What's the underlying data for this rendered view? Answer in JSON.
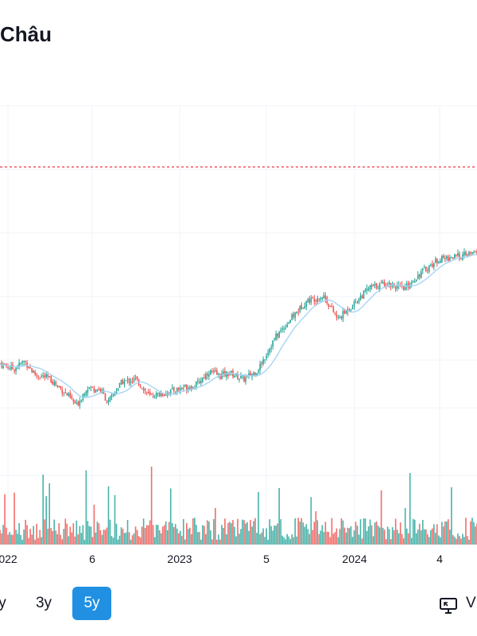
{
  "header": {
    "title": "Châu"
  },
  "chart_data": {
    "type": "candlestick",
    "reference_line": {
      "style": "dashed",
      "color": "#f23645"
    },
    "moving_average": {
      "color": "#a8d4f5"
    },
    "colors": {
      "up": "#26a69a",
      "down": "#ef5350",
      "grid": "#f0f3fa"
    },
    "x_ticks": [
      "022",
      "6",
      "2023",
      "5",
      "2024",
      "4"
    ],
    "price_path": [
      [
        0.0,
        0.78
      ],
      [
        0.04,
        0.74
      ],
      [
        0.07,
        0.8
      ],
      [
        0.1,
        0.7
      ],
      [
        0.14,
        0.67
      ],
      [
        0.19,
        0.55
      ],
      [
        0.22,
        0.46
      ],
      [
        0.25,
        0.6
      ],
      [
        0.29,
        0.58
      ],
      [
        0.31,
        0.48
      ],
      [
        0.35,
        0.64
      ],
      [
        0.39,
        0.66
      ],
      [
        0.43,
        0.53
      ],
      [
        0.48,
        0.56
      ],
      [
        0.53,
        0.6
      ],
      [
        0.56,
        0.61
      ],
      [
        0.6,
        0.72
      ],
      [
        0.63,
        0.69
      ],
      [
        0.66,
        0.71
      ],
      [
        0.7,
        0.66
      ],
      [
        0.74,
        0.73
      ],
      [
        0.79,
        0.98
      ],
      [
        0.84,
        1.14
      ],
      [
        0.88,
        1.26
      ],
      [
        0.93,
        1.3
      ],
      [
        0.97,
        1.12
      ],
      [
        1.02,
        1.25
      ],
      [
        1.06,
        1.36
      ],
      [
        1.11,
        1.4
      ],
      [
        1.16,
        1.35
      ],
      [
        1.21,
        1.48
      ],
      [
        1.26,
        1.58
      ],
      [
        1.31,
        1.6
      ],
      [
        1.37,
        1.63
      ]
    ]
  },
  "range_buttons": [
    {
      "label": "y",
      "active": false
    },
    {
      "label": "3y",
      "active": false
    },
    {
      "label": "5y",
      "active": true
    }
  ],
  "view_button": {
    "label": "V",
    "icon": "monitor-icon"
  }
}
